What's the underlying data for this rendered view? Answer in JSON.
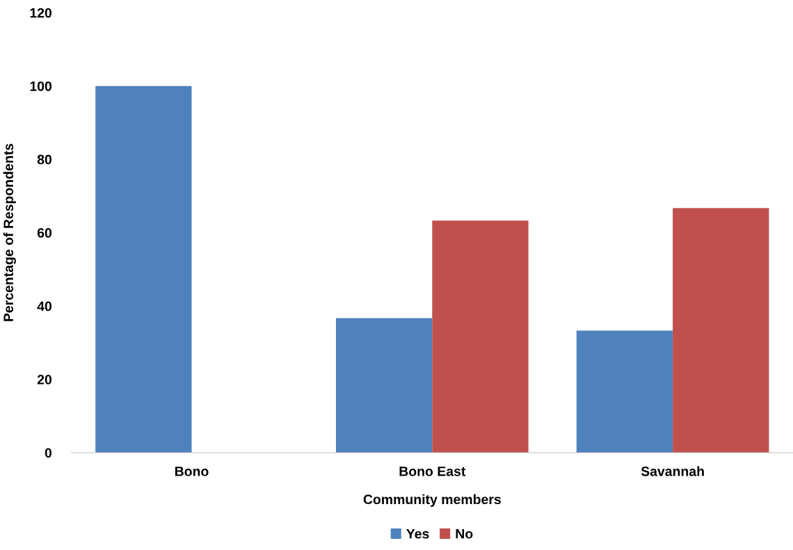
{
  "chart_data": {
    "type": "bar",
    "xlabel": "Community members",
    "ylabel": "Percentage of Respondents",
    "categories": [
      "Bono",
      "Bono East",
      "Savannah"
    ],
    "series": [
      {
        "name": "Yes",
        "color": "#4f81bd",
        "values": [
          100,
          36.7,
          33.3
        ]
      },
      {
        "name": "No",
        "color": "#c0504d",
        "values": [
          0,
          63.3,
          66.7
        ]
      }
    ],
    "ylim": [
      0,
      120
    ],
    "yticks": [
      0,
      20,
      40,
      60,
      80,
      100,
      120
    ],
    "grid": false,
    "legend": "bottom"
  }
}
